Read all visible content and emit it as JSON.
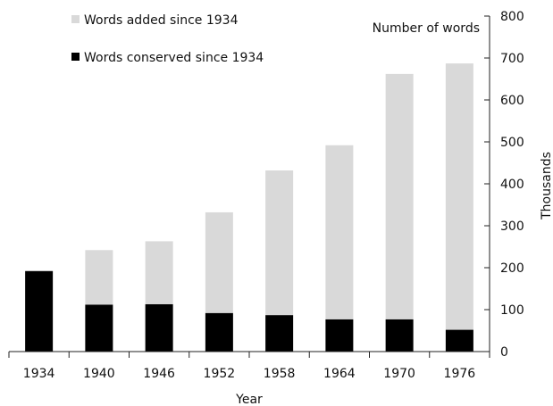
{
  "chart_data": {
    "type": "bar",
    "stacked": true,
    "categories": [
      "1934",
      "1940",
      "1946",
      "1952",
      "1958",
      "1964",
      "1970",
      "1976"
    ],
    "series": [
      {
        "name": "Words conserved since 1934",
        "color": "#000000",
        "values": [
          192,
          112,
          113,
          92,
          87,
          77,
          77,
          52
        ]
      },
      {
        "name": "Words added since 1934",
        "color": "#d9d9d9",
        "values": [
          0,
          130,
          150,
          240,
          345,
          415,
          585,
          635
        ]
      }
    ],
    "xlabel": "Year",
    "ylabel": "Thousands",
    "y_axis_title": "Number of words",
    "ylim": [
      0,
      800
    ],
    "yticks": [
      "0",
      "100",
      "200",
      "300",
      "400",
      "500",
      "600",
      "700",
      "800"
    ],
    "y_axis_position": "right",
    "grid": false,
    "legend_position": "top-left",
    "legend_order": [
      "Words added since 1934",
      "Words conserved since 1934"
    ]
  }
}
